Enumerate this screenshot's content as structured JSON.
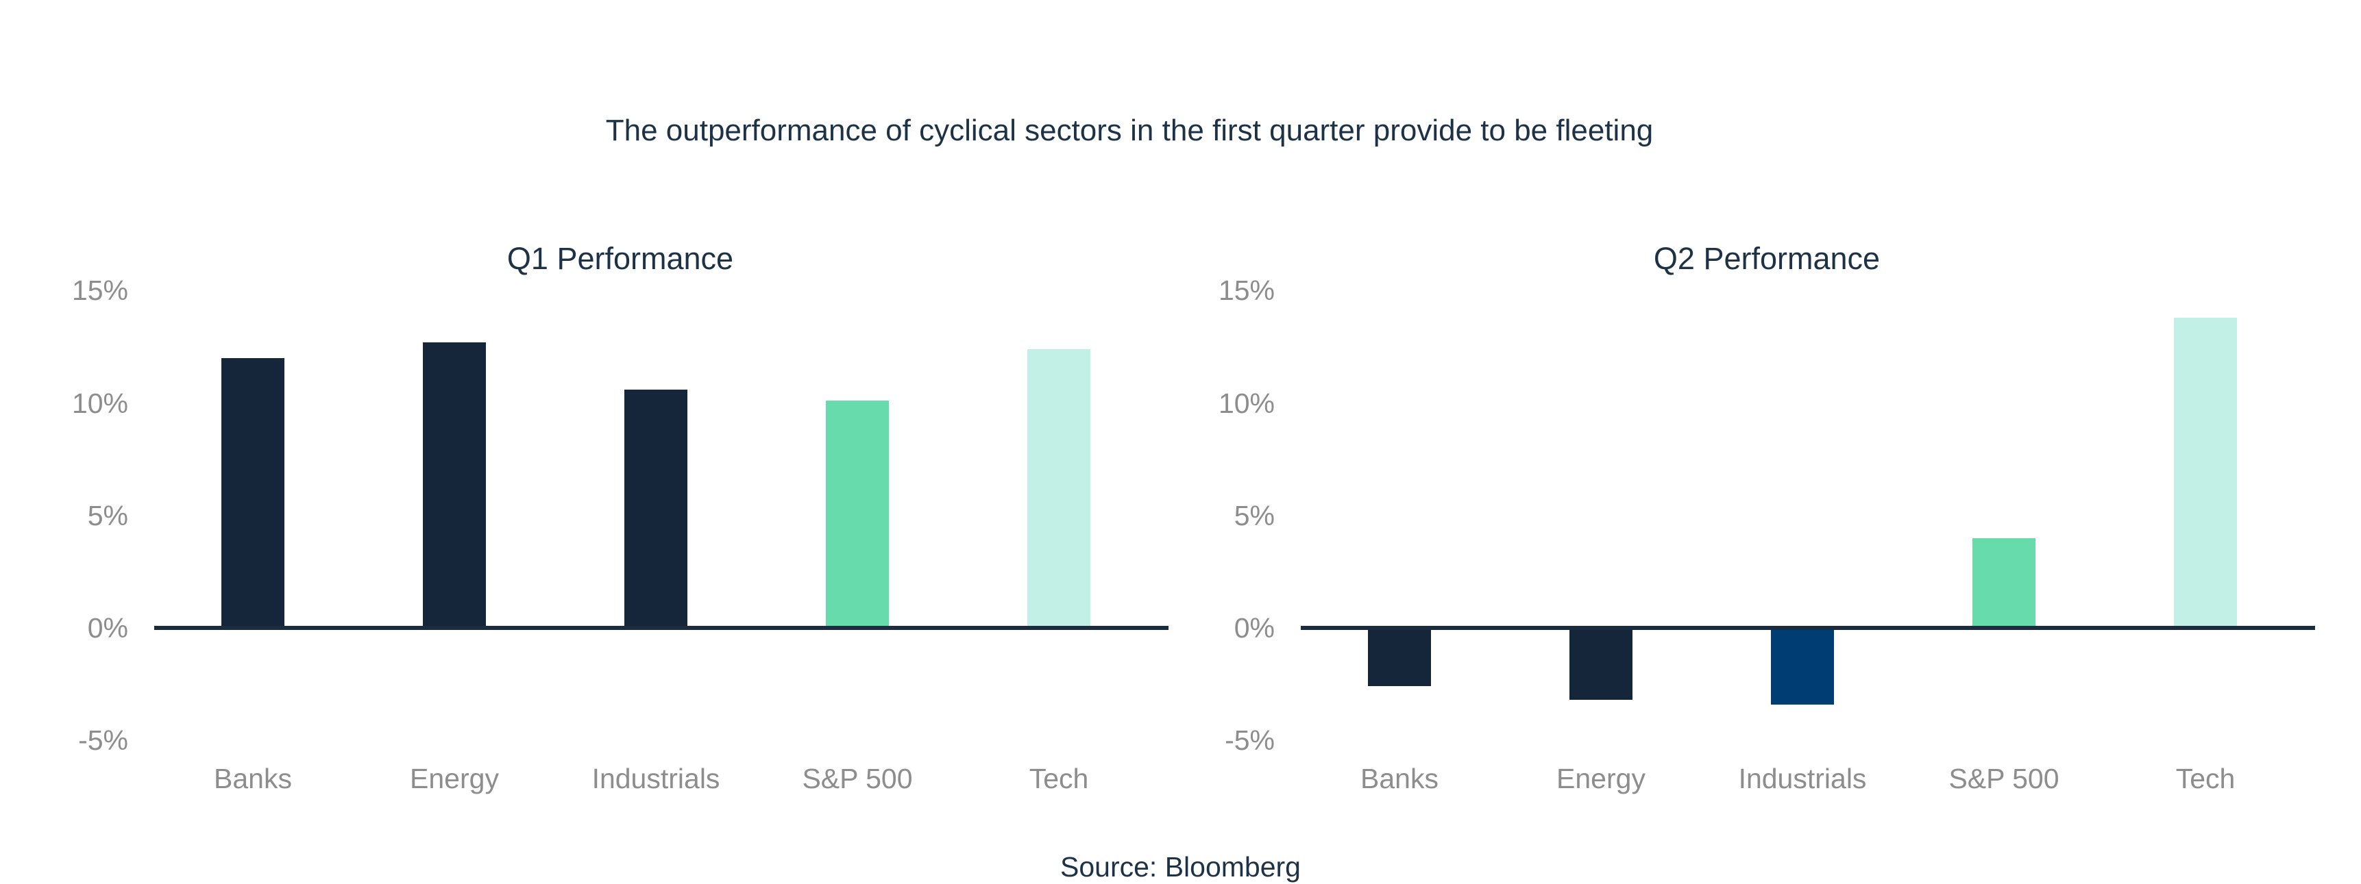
{
  "figure": {
    "main_title": "The outperformance of cyclical sectors in the first quarter provide to be fleeting",
    "source": "Source: Bloomberg"
  },
  "colors": {
    "navy": "#16263a",
    "royal_blue": "#003d72",
    "green": "#68dbad",
    "mint": "#c2f0e6",
    "axis": "#1b2c40",
    "label_gray": "#8d8d8d",
    "text_navy": "#1d3246",
    "background": "#ffffff"
  },
  "chart_data": [
    {
      "type": "bar",
      "title": "Q1 Performance",
      "categories": [
        "Banks",
        "Energy",
        "Industrials",
        "S&P 500",
        "Tech"
      ],
      "values": [
        12.0,
        12.7,
        10.6,
        10.1,
        12.4
      ],
      "bar_colors": [
        "navy",
        "navy",
        "navy",
        "green",
        "mint"
      ],
      "yticks": [
        {
          "label": "15%",
          "value": 15
        },
        {
          "label": "10%",
          "value": 10
        },
        {
          "label": "5%",
          "value": 5
        },
        {
          "label": "0%",
          "value": 0
        },
        {
          "label": "-5%",
          "value": -5
        }
      ],
      "ylim": [
        -5,
        15
      ],
      "xlabel": "",
      "ylabel": "",
      "grid": false,
      "legend": false
    },
    {
      "type": "bar",
      "title": "Q2 Performance",
      "categories": [
        "Banks",
        "Energy",
        "Industrials",
        "S&P 500",
        "Tech"
      ],
      "values": [
        -2.6,
        -3.2,
        -3.4,
        4.0,
        13.8
      ],
      "bar_colors": [
        "navy",
        "navy",
        "royal_blue",
        "green",
        "mint"
      ],
      "yticks": [
        {
          "label": "15%",
          "value": 15
        },
        {
          "label": "10%",
          "value": 10
        },
        {
          "label": "5%",
          "value": 5
        },
        {
          "label": "0%",
          "value": 0
        },
        {
          "label": "-5%",
          "value": -5
        }
      ],
      "ylim": [
        -5,
        15
      ],
      "xlabel": "",
      "ylabel": "",
      "grid": false,
      "legend": false
    }
  ]
}
